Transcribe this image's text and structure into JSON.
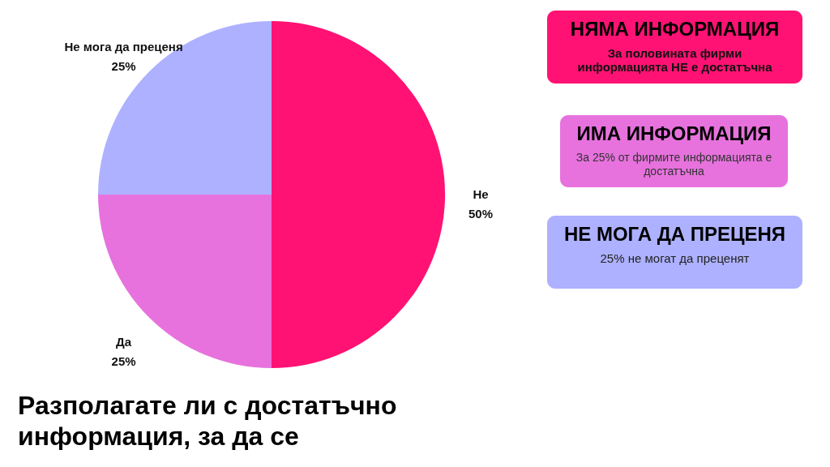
{
  "chart_data": [
    {
      "type": "pie",
      "title": "Разполагате ли с достатъчно информация, за да се",
      "categories": [
        "Не",
        "Да",
        "Не мога да преценя"
      ],
      "values": [
        50,
        25,
        25
      ],
      "value_labels": [
        "50%",
        "25%",
        "25%"
      ],
      "colors": [
        "#ff1273",
        "#e772dd",
        "#adb1ff"
      ]
    },
    {
      "type": "other",
      "annotations": [
        "НЯМА ИНФОРМАЦИЯ",
        "За половината фирми информацията НЕ е достатъчна",
        "ИМА ИНФОРМАЦИЯ",
        "За 25% от фирмите информацията е достатъчна",
        "НЕ МОГА ДА ПРЕЦЕНЯ",
        "25% не могат да преценят"
      ],
      "colors": [
        "#ff1273",
        "#e772dd",
        "#adb1ff"
      ]
    }
  ]
}
